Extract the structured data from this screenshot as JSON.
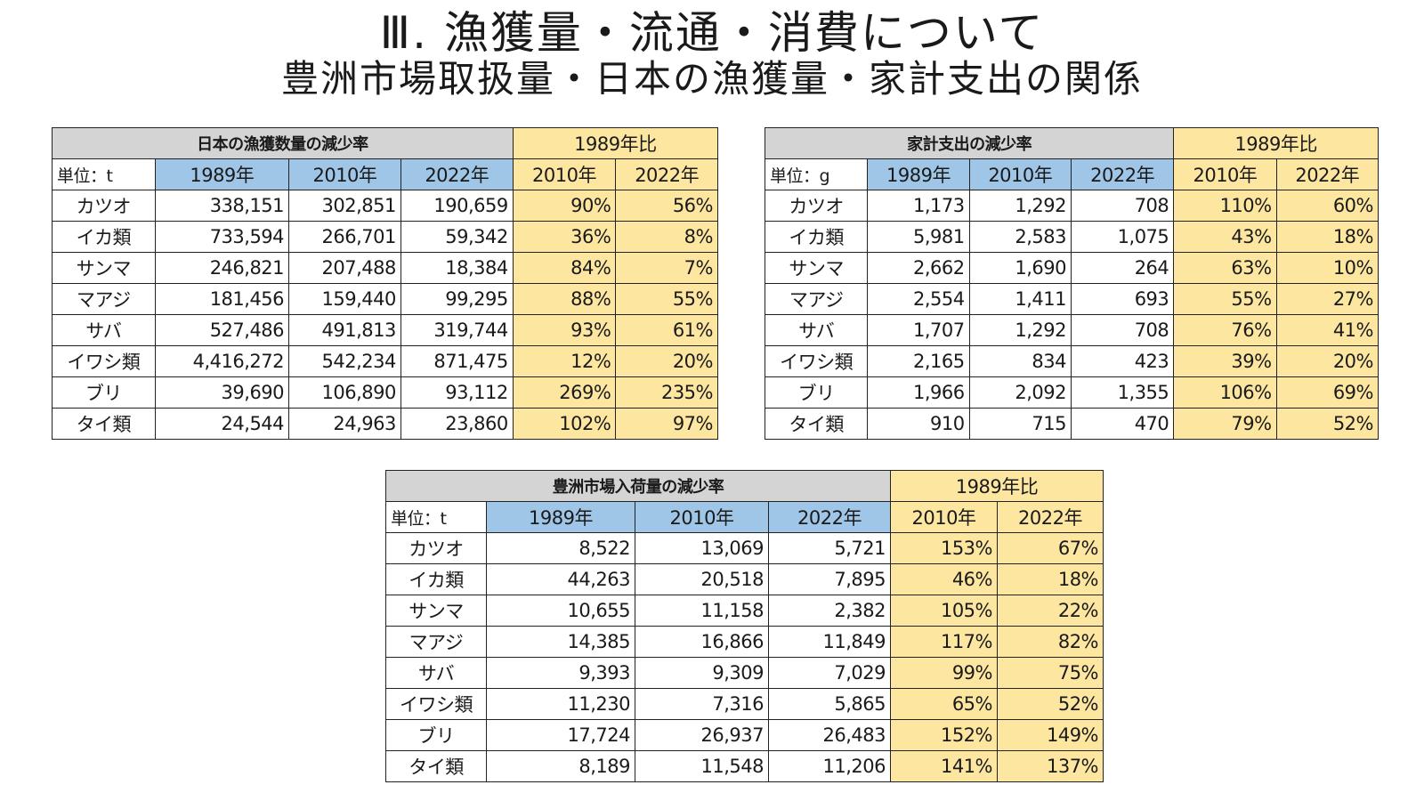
{
  "title": "Ⅲ. 漁獲量・流通・消費について",
  "subtitle": "豊洲市場取扱量・日本の漁獲量・家計支出の関係",
  "tables": [
    {
      "id": "catch",
      "heading": "日本の漁獲数量の減少率",
      "ratio_heading": "1989年比",
      "unit": "単位：t",
      "years": [
        "1989年",
        "2010年",
        "2022年"
      ],
      "ratio_years": [
        "2010年",
        "2022年"
      ],
      "rows": [
        {
          "label": "カツオ",
          "v1989": "338,151",
          "v2010": "302,851",
          "v2022": "190,659",
          "r2010": "90%",
          "r2022": "56%"
        },
        {
          "label": "イカ類",
          "v1989": "733,594",
          "v2010": "266,701",
          "v2022": "59,342",
          "r2010": "36%",
          "r2022": "8%"
        },
        {
          "label": "サンマ",
          "v1989": "246,821",
          "v2010": "207,488",
          "v2022": "18,384",
          "r2010": "84%",
          "r2022": "7%"
        },
        {
          "label": "マアジ",
          "v1989": "181,456",
          "v2010": "159,440",
          "v2022": "99,295",
          "r2010": "88%",
          "r2022": "55%"
        },
        {
          "label": "サバ",
          "v1989": "527,486",
          "v2010": "491,813",
          "v2022": "319,744",
          "r2010": "93%",
          "r2022": "61%"
        },
        {
          "label": "イワシ類",
          "v1989": "4,416,272",
          "v2010": "542,234",
          "v2022": "871,475",
          "r2010": "12%",
          "r2022": "20%"
        },
        {
          "label": "ブリ",
          "v1989": "39,690",
          "v2010": "106,890",
          "v2022": "93,112",
          "r2010": "269%",
          "r2022": "235%"
        },
        {
          "label": "タイ類",
          "v1989": "24,544",
          "v2010": "24,963",
          "v2022": "23,860",
          "r2010": "102%",
          "r2022": "97%"
        }
      ]
    },
    {
      "id": "household",
      "heading": "家計支出の減少率",
      "ratio_heading": "1989年比",
      "unit": "単位：g",
      "years": [
        "1989年",
        "2010年",
        "2022年"
      ],
      "ratio_years": [
        "2010年",
        "2022年"
      ],
      "rows": [
        {
          "label": "カツオ",
          "v1989": "1,173",
          "v2010": "1,292",
          "v2022": "708",
          "r2010": "110%",
          "r2022": "60%"
        },
        {
          "label": "イカ類",
          "v1989": "5,981",
          "v2010": "2,583",
          "v2022": "1,075",
          "r2010": "43%",
          "r2022": "18%"
        },
        {
          "label": "サンマ",
          "v1989": "2,662",
          "v2010": "1,690",
          "v2022": "264",
          "r2010": "63%",
          "r2022": "10%"
        },
        {
          "label": "マアジ",
          "v1989": "2,554",
          "v2010": "1,411",
          "v2022": "693",
          "r2010": "55%",
          "r2022": "27%"
        },
        {
          "label": "サバ",
          "v1989": "1,707",
          "v2010": "1,292",
          "v2022": "708",
          "r2010": "76%",
          "r2022": "41%"
        },
        {
          "label": "イワシ類",
          "v1989": "2,165",
          "v2010": "834",
          "v2022": "423",
          "r2010": "39%",
          "r2022": "20%"
        },
        {
          "label": "ブリ",
          "v1989": "1,966",
          "v2010": "2,092",
          "v2022": "1,355",
          "r2010": "106%",
          "r2022": "69%"
        },
        {
          "label": "タイ類",
          "v1989": "910",
          "v2010": "715",
          "v2022": "470",
          "r2010": "79%",
          "r2022": "52%"
        }
      ]
    },
    {
      "id": "market",
      "heading": "豊洲市場入荷量の減少率",
      "ratio_heading": "1989年比",
      "unit": "単位：t",
      "years": [
        "1989年",
        "2010年",
        "2022年"
      ],
      "ratio_years": [
        "2010年",
        "2022年"
      ],
      "rows": [
        {
          "label": "カツオ",
          "v1989": "8,522",
          "v2010": "13,069",
          "v2022": "5,721",
          "r2010": "153%",
          "r2022": "67%"
        },
        {
          "label": "イカ類",
          "v1989": "44,263",
          "v2010": "20,518",
          "v2022": "7,895",
          "r2010": "46%",
          "r2022": "18%"
        },
        {
          "label": "サンマ",
          "v1989": "10,655",
          "v2010": "11,158",
          "v2022": "2,382",
          "r2010": "105%",
          "r2022": "22%"
        },
        {
          "label": "マアジ",
          "v1989": "14,385",
          "v2010": "16,866",
          "v2022": "11,849",
          "r2010": "117%",
          "r2022": "82%"
        },
        {
          "label": "サバ",
          "v1989": "9,393",
          "v2010": "9,309",
          "v2022": "7,029",
          "r2010": "99%",
          "r2022": "75%"
        },
        {
          "label": "イワシ類",
          "v1989": "11,230",
          "v2010": "7,316",
          "v2022": "5,865",
          "r2010": "65%",
          "r2022": "52%"
        },
        {
          "label": "ブリ",
          "v1989": "17,724",
          "v2010": "26,937",
          "v2022": "26,483",
          "r2010": "152%",
          "r2022": "149%"
        },
        {
          "label": "タイ類",
          "v1989": "8,189",
          "v2010": "11,548",
          "v2022": "11,206",
          "r2010": "141%",
          "r2022": "137%"
        }
      ]
    }
  ]
}
